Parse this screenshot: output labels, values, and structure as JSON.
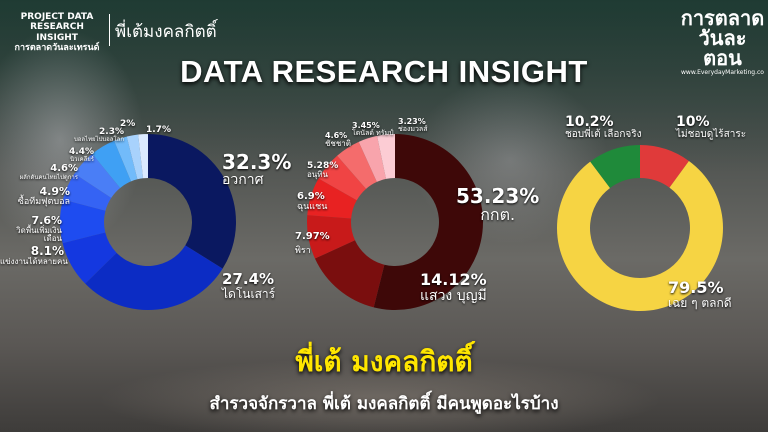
{
  "header": {
    "project_line1": "PROJECT DATA",
    "project_line2": "RESEARCH INSIGHT",
    "project_line3": "การตลาดวันละเทรนด์",
    "topic": "พี่เต้มงคลกิตติ์",
    "title": "DATA RESEARCH INSIGHT"
  },
  "logo": {
    "line1": "การตลาด",
    "line2": "วันละตอน",
    "url": "www.EverydayMarketing.co"
  },
  "footer": {
    "headline": "พี่เต้ มงคลกิตติ์",
    "subtitle": "สำรวจจักรวาล พี่เต้ มงคลกิตติ์ มีคนพูดอะไรบ้าง"
  },
  "chart_data": [
    {
      "type": "pie",
      "donut": true,
      "unit": "%",
      "slices": [
        {
          "label": "อวกาศ",
          "value": 32.3,
          "color": "#0a1860"
        },
        {
          "label": "ไดโนเสาร์",
          "value": 27.4,
          "color": "#0c2cc4"
        },
        {
          "label": "แข่งงานได้หลายคน",
          "value": 8.1,
          "color": "#1438e0"
        },
        {
          "label": "วิดพื้นเพิ่มเงินเดือน",
          "value": 7.6,
          "color": "#1e4cf0"
        },
        {
          "label": "ซื้อทีมฟุตบอล",
          "value": 4.9,
          "color": "#3563f4"
        },
        {
          "label": "ผลักดันคนไทยไปดูการ",
          "value": 4.6,
          "color": "#4a7ef6"
        },
        {
          "label": "นิวเคลียร์",
          "value": 4.4,
          "color": "#3fa0f4"
        },
        {
          "label": "บอลไทยไปบอลโลก",
          "value": 2.3,
          "color": "#72bbfa"
        },
        {
          "label": "",
          "value": 2.0,
          "color": "#a8d2fc"
        },
        {
          "label": "",
          "value": 1.7,
          "color": "#dbeaff"
        }
      ]
    },
    {
      "type": "pie",
      "donut": true,
      "unit": "%",
      "slices": [
        {
          "label": "กกต.",
          "value": 53.23,
          "color": "#3e0808"
        },
        {
          "label": "แสวง บุญมี",
          "value": 14.12,
          "color": "#7a0e0e"
        },
        {
          "label": "พิรา",
          "value": 7.97,
          "color": "#c81a1a"
        },
        {
          "label": "ฉุนแชน",
          "value": 6.9,
          "color": "#e82222"
        },
        {
          "label": "อนุทิน",
          "value": 5.28,
          "color": "#f04444"
        },
        {
          "label": "ชัชชาติ",
          "value": 4.6,
          "color": "#f46c6c"
        },
        {
          "label": "โดนัลด์ ทรัมป์",
          "value": 3.45,
          "color": "#f8a4ac"
        },
        {
          "label": "ช่องมวลส์",
          "value": 3.23,
          "color": "#fcccd4"
        }
      ]
    },
    {
      "type": "pie",
      "donut": true,
      "unit": "%",
      "slices": [
        {
          "label": "ไม่ชอบดูไร้สาระ",
          "value": 10,
          "color": "#e03a3a"
        },
        {
          "label": "เฉย ๆ ตลกดี",
          "value": 79.5,
          "color": "#f6d443"
        },
        {
          "label": "ชอบพี่เต้ เลือกจริง",
          "value": 10.2,
          "color": "#1f8a3a"
        }
      ]
    }
  ]
}
